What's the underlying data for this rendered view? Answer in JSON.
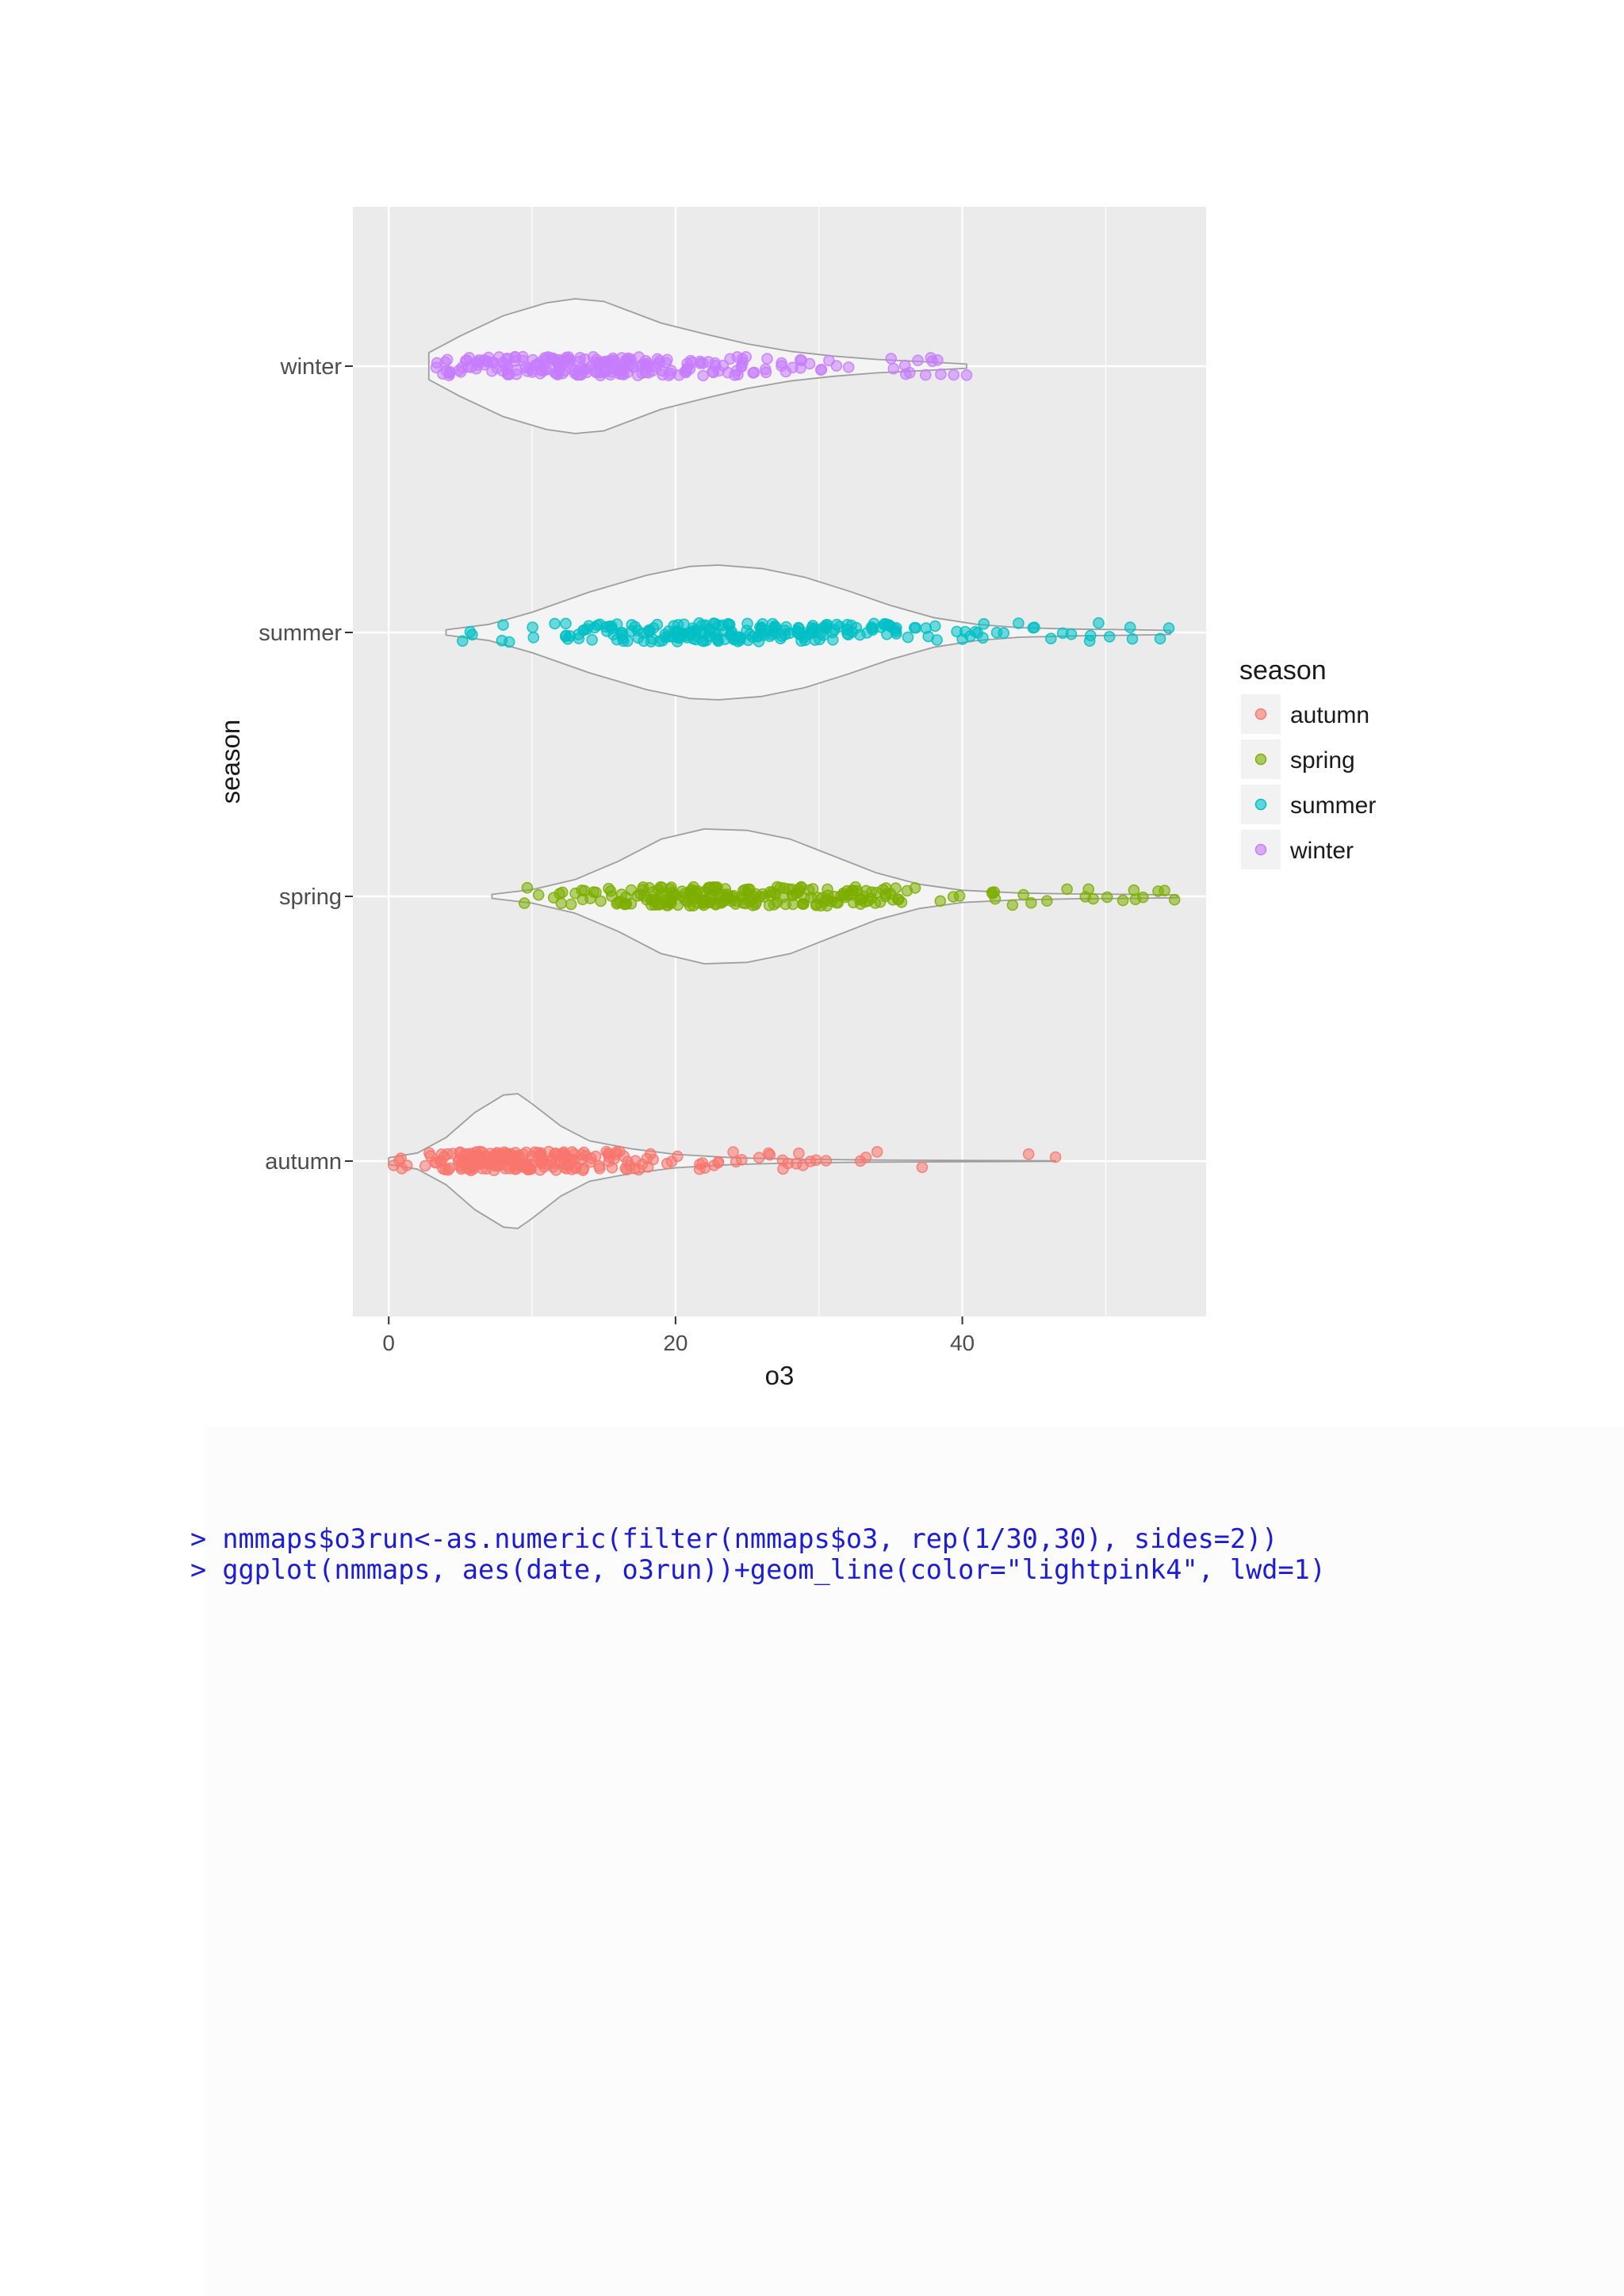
{
  "colors": {
    "panel_background": "#ebebeb",
    "grid_major": "#ffffff",
    "violin_fill": "#f4f4f5",
    "violin_stroke": "#9e9e9e",
    "axis_text": "#4d4d4d",
    "axis_title": "#1a1a1a",
    "code_text": "#1c1cd6"
  },
  "chart_data": {
    "type": "violin-jitter",
    "title": "",
    "xlabel": "o3",
    "ylabel": "season",
    "xlim": [
      -2.5,
      57
    ],
    "x_ticks": [
      "0",
      "20",
      "40"
    ],
    "x_tick_values": [
      0,
      20,
      40
    ],
    "categories": [
      "autumn",
      "spring",
      "summer",
      "winter"
    ],
    "grid": true,
    "legend": {
      "title": "season",
      "placement": "right",
      "entries": [
        "autumn",
        "spring",
        "summer",
        "winter"
      ]
    },
    "series": [
      {
        "name": "autumn",
        "color": "#f8766d",
        "range": [
          0.2,
          46.5
        ],
        "density": [
          [
            0,
            0.05
          ],
          [
            2,
            0.12
          ],
          [
            4,
            0.35
          ],
          [
            6,
            0.72
          ],
          [
            8,
            0.98
          ],
          [
            9,
            1.0
          ],
          [
            10,
            0.85
          ],
          [
            12,
            0.52
          ],
          [
            14,
            0.3
          ],
          [
            17,
            0.18
          ],
          [
            20,
            0.1
          ],
          [
            24,
            0.05
          ],
          [
            28,
            0.03
          ],
          [
            34,
            0.015
          ],
          [
            40,
            0.01
          ],
          [
            46.5,
            0.005
          ]
        ],
        "outliers": [
          27.5,
          28.6,
          29.8,
          30.5,
          37.2,
          46.5
        ]
      },
      {
        "name": "spring",
        "color": "#7cae00",
        "range": [
          7.2,
          55
        ],
        "density": [
          [
            7.2,
            0.03
          ],
          [
            10,
            0.1
          ],
          [
            13,
            0.25
          ],
          [
            16,
            0.52
          ],
          [
            19,
            0.85
          ],
          [
            22,
            1.0
          ],
          [
            25,
            0.98
          ],
          [
            28,
            0.85
          ],
          [
            31,
            0.6
          ],
          [
            34,
            0.35
          ],
          [
            37,
            0.18
          ],
          [
            40,
            0.09
          ],
          [
            44,
            0.05
          ],
          [
            48,
            0.035
          ],
          [
            52,
            0.03
          ],
          [
            55,
            0.02
          ]
        ],
        "outliers": [
          42.1,
          43.5,
          44.8,
          45.9,
          47.3,
          48.8,
          50.1,
          51.2,
          52.6,
          54.1,
          54.8
        ]
      },
      {
        "name": "summer",
        "color": "#00bfc4",
        "range": [
          4,
          54.5
        ],
        "density": [
          [
            4,
            0.04
          ],
          [
            7,
            0.12
          ],
          [
            10,
            0.3
          ],
          [
            14,
            0.6
          ],
          [
            18,
            0.85
          ],
          [
            21,
            0.98
          ],
          [
            23,
            1.0
          ],
          [
            26,
            0.95
          ],
          [
            29,
            0.82
          ],
          [
            32,
            0.62
          ],
          [
            35,
            0.4
          ],
          [
            38,
            0.22
          ],
          [
            41,
            0.12
          ],
          [
            44,
            0.07
          ],
          [
            48,
            0.05
          ],
          [
            52,
            0.04
          ],
          [
            54.5,
            0.03
          ]
        ],
        "outliers": [
          40.2,
          41.5,
          42.4,
          47.0,
          47.6,
          49.5,
          53.8,
          54.4
        ]
      },
      {
        "name": "winter",
        "color": "#c77cff",
        "range": [
          2.8,
          40.3
        ],
        "density": [
          [
            2.8,
            0.2
          ],
          [
            5,
            0.45
          ],
          [
            8,
            0.75
          ],
          [
            11,
            0.94
          ],
          [
            13,
            1.0
          ],
          [
            15,
            0.96
          ],
          [
            17,
            0.8
          ],
          [
            19,
            0.64
          ],
          [
            22,
            0.48
          ],
          [
            25,
            0.33
          ],
          [
            28,
            0.22
          ],
          [
            31,
            0.15
          ],
          [
            34,
            0.1
          ],
          [
            37,
            0.07
          ],
          [
            40.3,
            0.03
          ]
        ],
        "outliers": [
          35.2,
          36.0,
          36.9,
          37.8,
          38.5,
          39.4,
          40.3
        ]
      }
    ]
  },
  "code": {
    "line1": "> nmmaps$o3run<-as.numeric(filter(nmmaps$o3, rep(1/30,30), sides=2))",
    "line2": "> ggplot(nmmaps, aes(date, o3run))+geom_line(color=\"lightpink4\", lwd=1)"
  }
}
